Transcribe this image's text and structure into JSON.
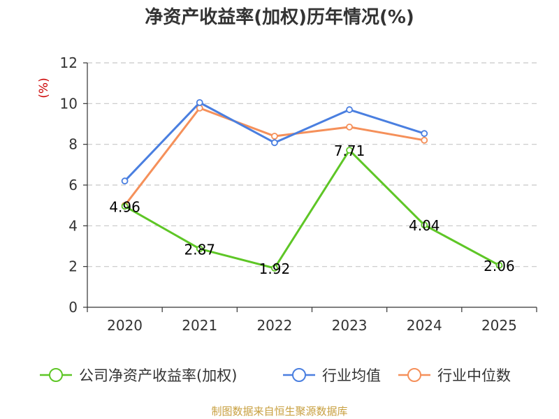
{
  "colors": {
    "company": "#5ec626",
    "industry_avg": "#4a7fe0",
    "industry_median": "#f5905a",
    "ylabel": "#cc0000",
    "source": "#c8a040",
    "grid": "#c8c8c8",
    "axis": "#333333"
  },
  "chart_data": {
    "type": "line",
    "title": "净资产收益率(加权)历年情况(%)",
    "xlabel": "",
    "ylabel": "(%)",
    "categories": [
      "2020",
      "2021",
      "2022",
      "2023",
      "2024",
      "2025"
    ],
    "ylim": [
      0,
      12
    ],
    "yticks": [
      0,
      2,
      4,
      6,
      8,
      10,
      12
    ],
    "grid": true,
    "legend_position": "bottom",
    "series": [
      {
        "name": "公司净资产收益率(加权)",
        "color_key": "company",
        "show_labels": true,
        "values": [
          4.96,
          2.87,
          1.92,
          7.71,
          4.04,
          2.06
        ],
        "labels": [
          "4.96",
          "2.87",
          "1.92",
          "7.71",
          "4.04",
          "2.06"
        ]
      },
      {
        "name": "行业均值",
        "color_key": "industry_avg",
        "show_labels": false,
        "values": [
          6.2,
          10.05,
          8.08,
          9.7,
          8.53,
          null
        ]
      },
      {
        "name": "行业中位数",
        "color_key": "industry_median",
        "show_labels": false,
        "values": [
          5.0,
          9.78,
          8.4,
          8.85,
          8.2,
          null
        ]
      }
    ]
  },
  "source": "制图数据来自恒生聚源数据库"
}
